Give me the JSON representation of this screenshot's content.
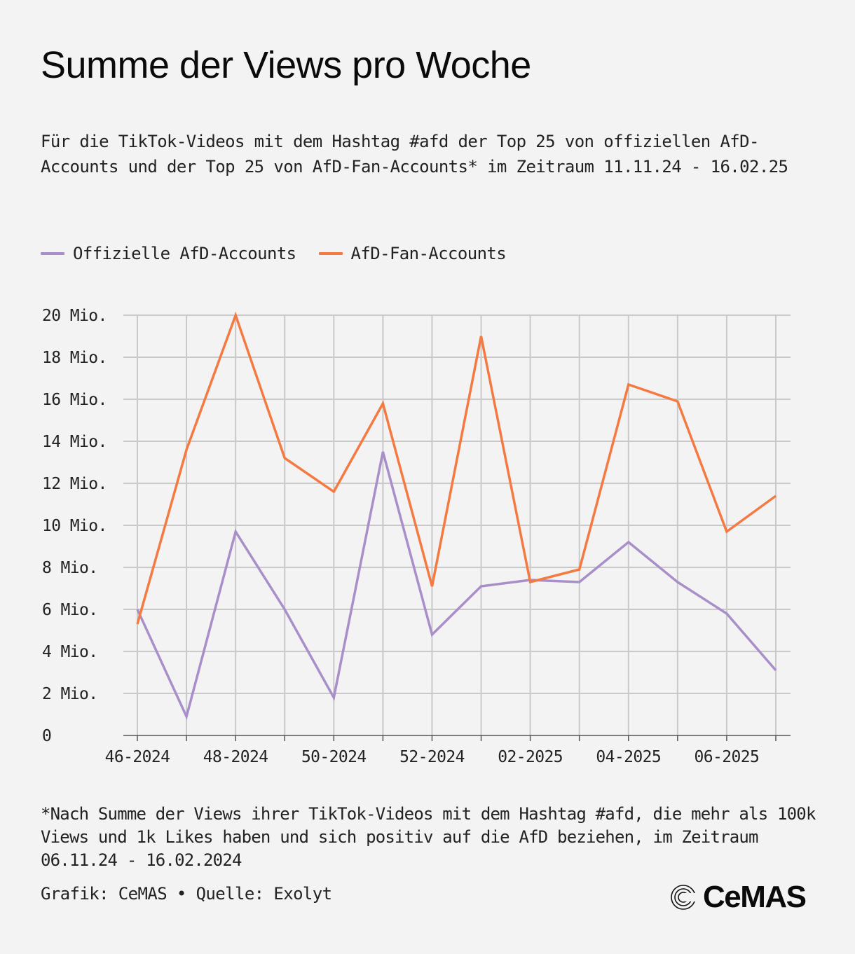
{
  "header": {
    "title": "Summe der Views pro Woche",
    "subtitle": "Für die TikTok-Videos mit dem Hashtag #afd der Top 25 von offiziellen AfD-Accounts und der Top 25 von AfD-Fan-Accounts* im Zeitraum 11.11.24 - 16.02.25"
  },
  "footer": {
    "footnote": "*Nach Summe der Views ihrer TikTok-Videos mit dem Hashtag #afd, die mehr als 100k Views und 1k Likes haben und sich positiv auf die AfD beziehen, im Zeitraum 06.11.24 - 16.02.2024",
    "credit": "Grafik: CeMAS • Quelle: Exolyt",
    "logo": "CeMAS"
  },
  "chart_data": {
    "type": "line",
    "title": "Summe der Views pro Woche",
    "xlabel": "",
    "ylabel": "",
    "ylim": [
      0,
      20000000
    ],
    "grid": true,
    "legend_position": "top-left",
    "x": [
      "46-2024",
      "47-2024",
      "48-2024",
      "49-2024",
      "50-2024",
      "51-2024",
      "52-2024",
      "01-2025",
      "02-2025",
      "03-2025",
      "04-2025",
      "05-2025",
      "06-2025",
      "07-2025"
    ],
    "x_tick_labels": [
      "46-2024",
      "48-2024",
      "50-2024",
      "52-2024",
      "02-2025",
      "04-2025",
      "06-2025"
    ],
    "y_ticks": [
      0,
      2000000,
      4000000,
      6000000,
      8000000,
      10000000,
      12000000,
      14000000,
      16000000,
      18000000,
      20000000
    ],
    "y_tick_labels": [
      "0",
      "2 Mio.",
      "4 Mio.",
      "6 Mio.",
      "8 Mio.",
      "10 Mio.",
      "12 Mio.",
      "14 Mio.",
      "16 Mio.",
      "18 Mio.",
      "20 Mio."
    ],
    "series": [
      {
        "name": "Offizielle AfD-Accounts",
        "color": "#a98fc9",
        "values": [
          6000000,
          900000,
          9700000,
          6000000,
          1800000,
          13500000,
          4800000,
          7100000,
          7400000,
          7300000,
          9200000,
          7300000,
          5800000,
          3100000
        ]
      },
      {
        "name": "AfD-Fan-Accounts",
        "color": "#f47a42",
        "values": [
          5300000,
          13600000,
          20000000,
          13200000,
          11600000,
          15800000,
          7100000,
          19000000,
          7300000,
          7900000,
          16700000,
          15900000,
          9700000,
          11400000
        ]
      }
    ]
  }
}
